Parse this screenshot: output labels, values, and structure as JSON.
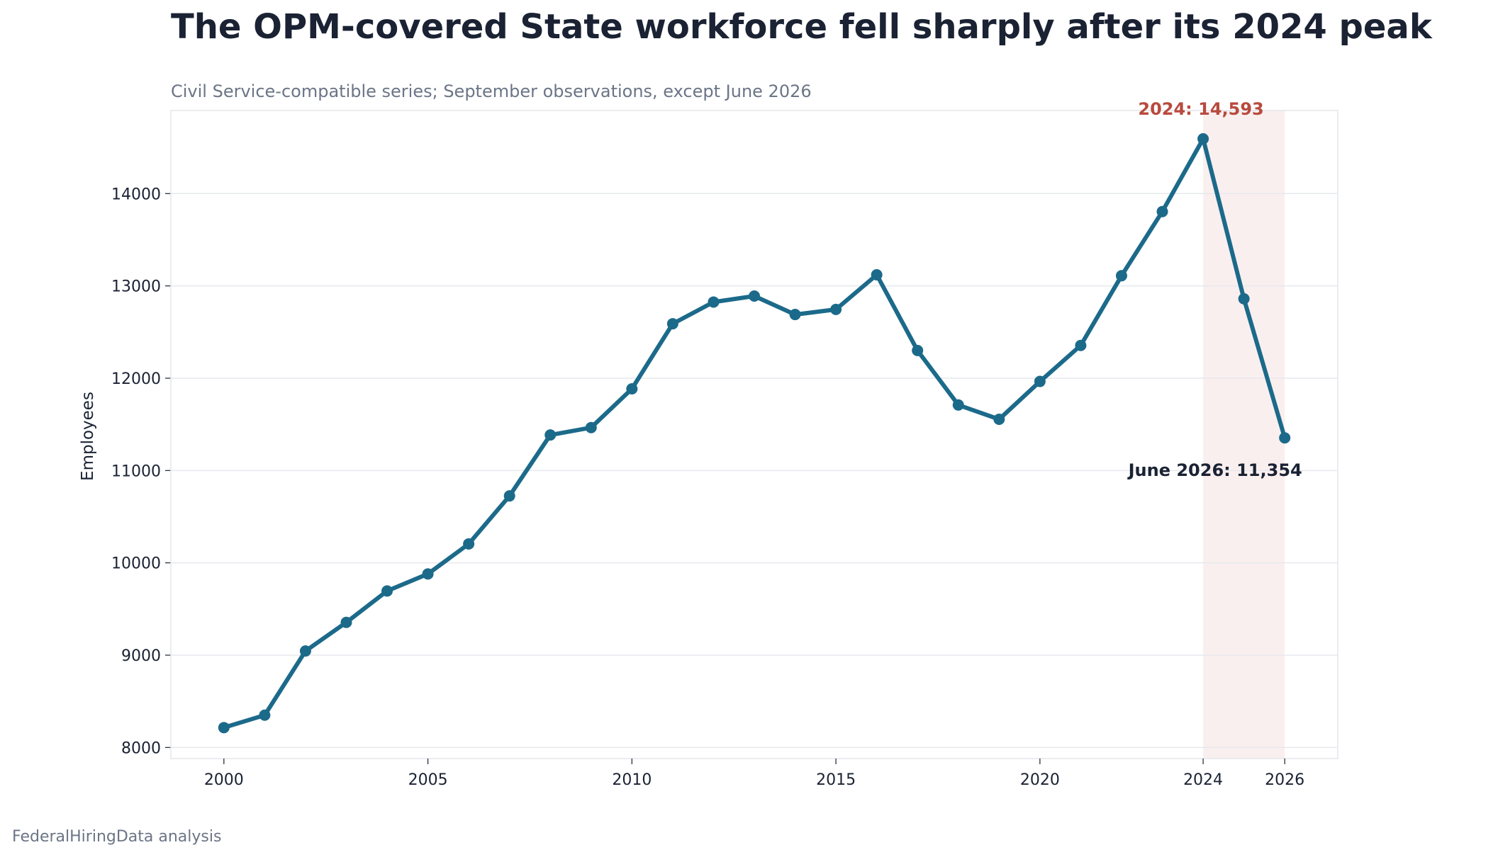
{
  "chart_data": {
    "type": "line",
    "title": "The OPM-covered State workforce fell sharply after its 2024 peak",
    "subtitle": "Civil Service-compatible series; September observations, except June 2026",
    "xlabel": "",
    "ylabel": "Employees",
    "source": "FederalHiringData analysis",
    "xlim": [
      1998.7,
      2027.3
    ],
    "ylim": [
      7880,
      14900
    ],
    "xticks": [
      2000,
      2005,
      2010,
      2015,
      2020,
      2024,
      2026
    ],
    "yticks": [
      8000,
      9000,
      10000,
      11000,
      12000,
      13000,
      14000
    ],
    "grid": "horizontal",
    "highlight_range": [
      2024,
      2026
    ],
    "series": [
      {
        "x": [
          2000,
          2001,
          2002,
          2003,
          2004,
          2005,
          2006,
          2007,
          2008,
          2009,
          2010,
          2011,
          2012,
          2013,
          2014,
          2015,
          2016,
          2017,
          2018,
          2019,
          2020,
          2021,
          2022,
          2023,
          2024,
          2025,
          2026
        ],
        "values": [
          8215,
          8350,
          9045,
          9355,
          9695,
          9880,
          10205,
          10725,
          11385,
          11465,
          11885,
          12590,
          12825,
          12890,
          12690,
          12745,
          13120,
          12300,
          11710,
          11555,
          11965,
          12355,
          13110,
          13805,
          14593,
          12860,
          11354
        ]
      }
    ],
    "annotations": [
      {
        "text": "2024: 14,593",
        "x": 2024,
        "y": 14593
      },
      {
        "text": "June 2026: 11,354",
        "x": 2026,
        "y": 11354
      }
    ],
    "colors": {
      "line": "#1c6a8a",
      "highlight": "#faefef",
      "peak_label": "#b84a3e",
      "text": "#1a2233",
      "muted": "#6b7586",
      "grid": "#e6e9ee",
      "frame": "#e3e6ea"
    }
  }
}
